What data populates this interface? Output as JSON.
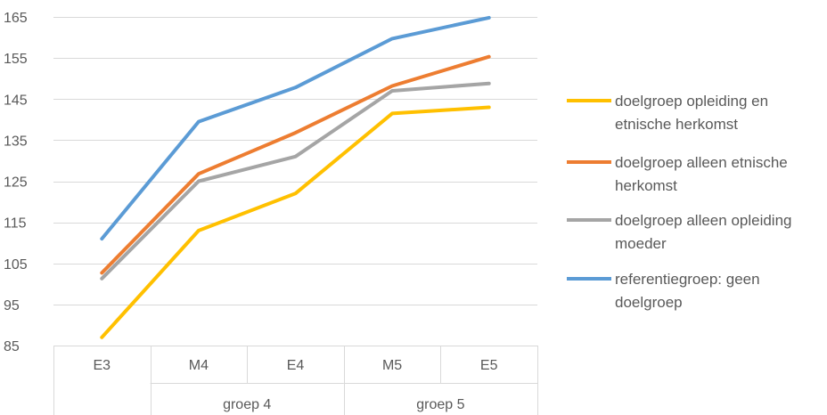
{
  "chart_data": {
    "type": "line",
    "title": "",
    "xlabel": "",
    "ylabel": "",
    "ylim": [
      85,
      165
    ],
    "yticks": [
      85,
      95,
      105,
      115,
      125,
      135,
      145,
      155,
      165
    ],
    "categories": [
      "E3",
      "M4",
      "E4",
      "M5",
      "E5"
    ],
    "groups": [
      {
        "label": "groep 4",
        "start": 1,
        "end": 2
      },
      {
        "label": "groep 5",
        "start": 3,
        "end": 4
      }
    ],
    "grid": true,
    "legend_position": "right",
    "series": [
      {
        "name_lines": [
          "doelgroep opleiding en",
          "etnische herkomst"
        ],
        "color": "#FFC000",
        "values": [
          87,
          113,
          122,
          141.5,
          143
        ]
      },
      {
        "name_lines": [
          "doelgroep alleen etnische",
          "herkomst"
        ],
        "color": "#ED7D31",
        "values": [
          102.7,
          126.8,
          136.8,
          148.2,
          155.3
        ]
      },
      {
        "name_lines": [
          "doelgroep alleen opleiding",
          "moeder"
        ],
        "color": "#A5A5A5",
        "values": [
          101.3,
          125,
          131,
          147,
          148.8
        ]
      },
      {
        "name_lines": [
          "referentiegroep: geen",
          "doelgroep"
        ],
        "color": "#5B9BD5",
        "values": [
          111,
          139.5,
          147.8,
          159.7,
          164.8
        ]
      }
    ]
  }
}
